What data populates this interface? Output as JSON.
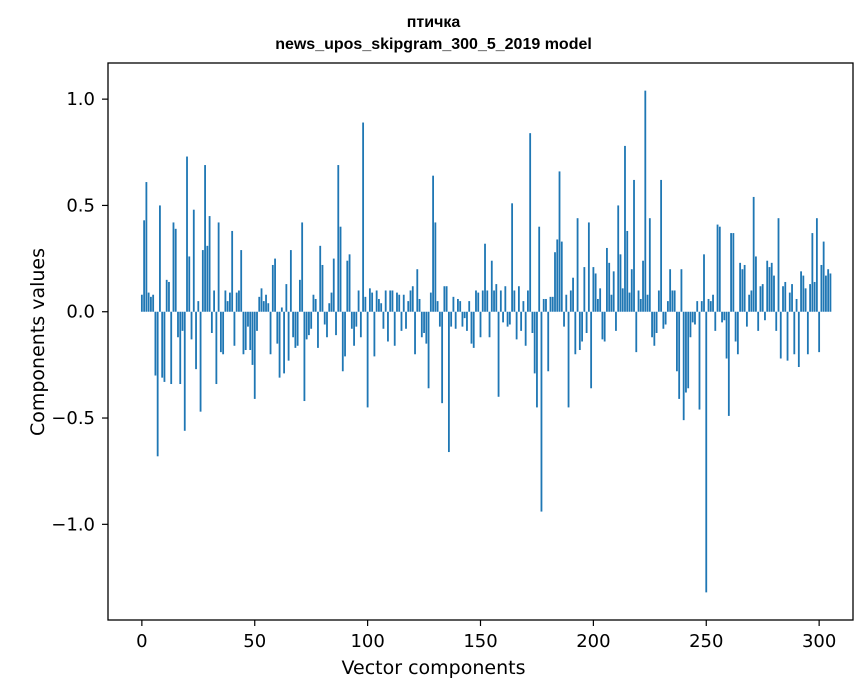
{
  "chart_data": {
    "type": "bar",
    "title_line1": "птичка",
    "title_line2": "news_upos_skipgram_300_5_2019 model",
    "xlabel": "Vector components",
    "ylabel": "Components values",
    "xlim": [
      -15,
      315
    ],
    "ylim": [
      -1.45,
      1.17
    ],
    "xticks": [
      0,
      50,
      100,
      150,
      200,
      250,
      300
    ],
    "xtick_labels": [
      "0",
      "50",
      "100",
      "150",
      "200",
      "250",
      "300"
    ],
    "yticks": [
      1.0,
      0.5,
      0.0,
      -0.5,
      -1.0
    ],
    "ytick_labels": [
      "1.0",
      "0.5",
      "0.0",
      "−0.5",
      "−1.0"
    ],
    "bar_color": "#1f77b4",
    "values": [
      0.08,
      0.43,
      0.61,
      0.09,
      0.07,
      0.08,
      -0.3,
      -0.68,
      0.5,
      -0.31,
      -0.33,
      0.15,
      0.14,
      -0.34,
      0.42,
      0.39,
      -0.12,
      -0.34,
      -0.09,
      -0.56,
      0.73,
      0.26,
      -0.13,
      0.48,
      -0.27,
      0.05,
      -0.47,
      0.29,
      0.69,
      0.31,
      0.45,
      -0.1,
      0.1,
      -0.34,
      0.42,
      -0.19,
      -0.2,
      0.1,
      0.05,
      0.09,
      0.38,
      -0.16,
      0.09,
      0.1,
      0.29,
      -0.2,
      -0.18,
      -0.07,
      -0.18,
      -0.25,
      -0.41,
      -0.09,
      0.07,
      0.11,
      0.05,
      0.08,
      0.04,
      -0.2,
      0.22,
      0.25,
      -0.15,
      -0.31,
      0.02,
      -0.29,
      0.13,
      -0.23,
      0.29,
      -0.12,
      -0.17,
      -0.16,
      0.15,
      0.42,
      -0.42,
      -0.13,
      -0.11,
      -0.08,
      0.08,
      0.06,
      -0.17,
      0.31,
      0.22,
      -0.06,
      -0.12,
      0.04,
      0.09,
      0.25,
      -0.11,
      0.69,
      0.4,
      -0.28,
      -0.21,
      0.24,
      0.27,
      -0.08,
      -0.16,
      -0.07,
      0.1,
      -0.12,
      0.89,
      0.07,
      -0.45,
      0.11,
      0.09,
      -0.21,
      0.1,
      0.06,
      0.04,
      -0.08,
      0.1,
      -0.14,
      0.1,
      0.1,
      -0.16,
      0.09,
      0.08,
      -0.09,
      0.08,
      -0.08,
      0.05,
      0.1,
      0.12,
      -0.2,
      0.2,
      0.06,
      -0.12,
      -0.1,
      -0.15,
      -0.36,
      0.09,
      0.64,
      0.42,
      0.05,
      -0.07,
      -0.43,
      0.12,
      0.12,
      -0.66,
      -0.07,
      0.07,
      -0.08,
      0.06,
      0.05,
      -0.07,
      -0.03,
      -0.09,
      0.05,
      -0.15,
      -0.17,
      0.1,
      0.09,
      -0.12,
      0.1,
      0.32,
      0.1,
      -0.12,
      0.24,
      0.1,
      0.13,
      -0.4,
      0.1,
      -0.05,
      0.12,
      -0.07,
      -0.06,
      0.51,
      0.1,
      -0.13,
      0.12,
      -0.09,
      0.05,
      -0.16,
      0.1,
      0.84,
      -0.1,
      -0.29,
      -0.45,
      0.4,
      -0.94,
      0.06,
      0.06,
      -0.28,
      0.07,
      0.07,
      0.28,
      0.34,
      0.66,
      0.33,
      -0.07,
      0.08,
      -0.45,
      0.1,
      0.16,
      -0.2,
      0.44,
      -0.18,
      -0.14,
      0.21,
      -0.1,
      0.42,
      -0.36,
      0.21,
      0.18,
      0.06,
      0.11,
      -0.13,
      -0.14,
      0.3,
      0.23,
      0.08,
      0.19,
      -0.09,
      0.5,
      0.27,
      0.11,
      0.78,
      0.38,
      0.09,
      0.2,
      0.62,
      -0.19,
      0.1,
      0.06,
      0.24,
      1.04,
      0.08,
      0.44,
      -0.12,
      -0.16,
      -0.1,
      0.1,
      0.62,
      -0.08,
      -0.06,
      0.05,
      0.2,
      0.1,
      0.1,
      -0.28,
      -0.41,
      0.2,
      -0.51,
      -0.38,
      -0.36,
      -0.12,
      -0.05,
      -0.06,
      0.05,
      -0.46,
      0.05,
      0.27,
      -1.32,
      0.06,
      0.05,
      0.08,
      -0.09,
      0.41,
      0.4,
      -0.05,
      -0.04,
      -0.22,
      -0.49,
      0.37,
      0.37,
      -0.14,
      -0.2,
      0.23,
      0.2,
      0.22,
      -0.07,
      0.08,
      0.1,
      0.54,
      0.26,
      -0.09,
      0.12,
      0.13,
      -0.04,
      0.24,
      0.21,
      0.23,
      0.17,
      -0.09,
      0.44,
      -0.22,
      0.12,
      0.14,
      -0.23,
      0.09,
      0.13,
      -0.2,
      0.06,
      -0.26,
      0.19,
      0.17,
      0.11,
      -0.2,
      0.13,
      0.37,
      0.14,
      0.44,
      -0.19,
      0.22,
      0.33,
      0.17,
      0.2,
      0.18
    ]
  }
}
